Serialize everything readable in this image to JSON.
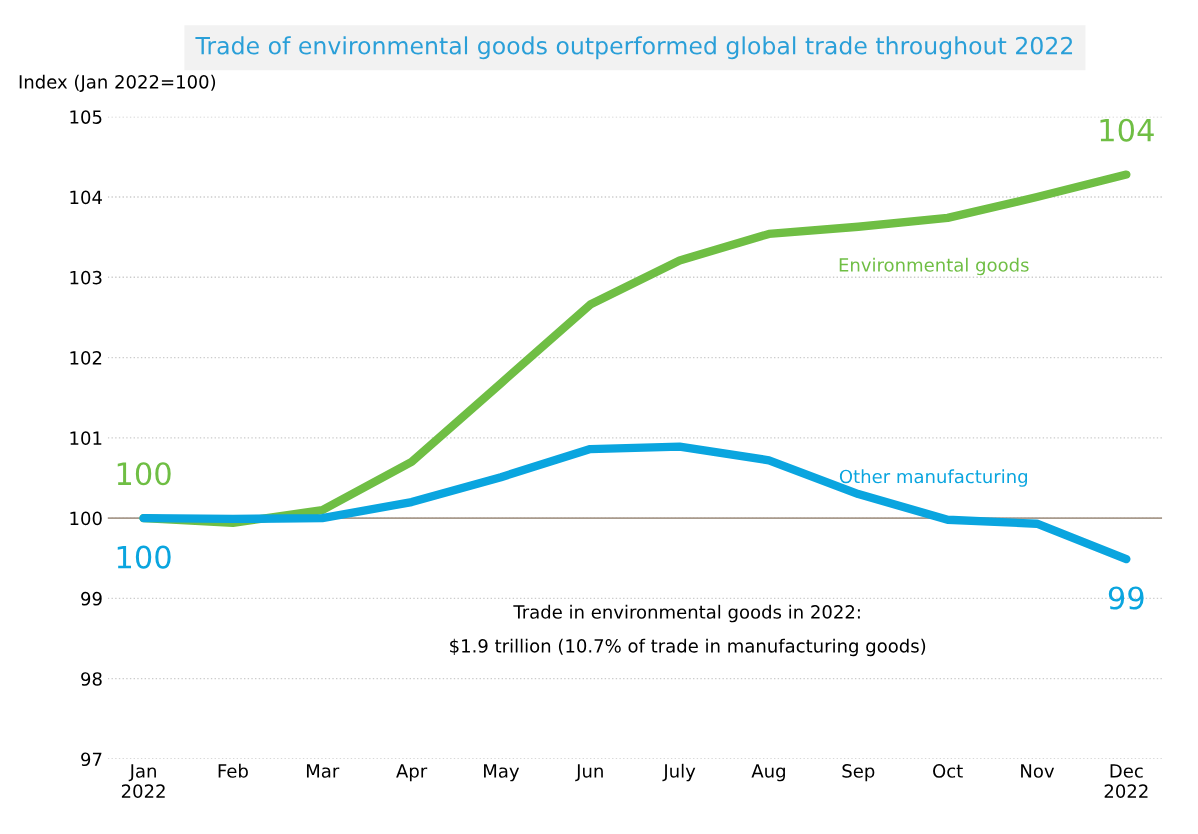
{
  "chart_data": {
    "type": "line",
    "title": "Trade of environmental goods outperformed global trade throughout 2022",
    "ylabel": "Index (Jan 2022=100)",
    "categories": [
      "Jan\n2022",
      "Feb",
      "Mar",
      "Apr",
      "May",
      "Jun",
      "July",
      "Aug",
      "Sep",
      "Oct",
      "Nov",
      "Dec\n2022"
    ],
    "series": [
      {
        "name": "Environmental goods",
        "color": "#6fbe44",
        "values": [
          100.0,
          99.94,
          100.1,
          100.7,
          101.68,
          102.66,
          103.21,
          103.54,
          103.63,
          103.74,
          104.0,
          104.28
        ]
      },
      {
        "name": "Other manufacturing",
        "color": "#0aa5df",
        "values": [
          100.0,
          99.99,
          100.0,
          100.2,
          100.51,
          100.86,
          100.89,
          100.72,
          100.3,
          99.98,
          99.93,
          99.49
        ]
      }
    ],
    "ylim": [
      97,
      105
    ],
    "yticks": [
      97,
      98,
      99,
      100,
      101,
      102,
      103,
      104,
      105
    ],
    "grid": "y",
    "legend": false,
    "marker": "none",
    "line_style": "solid",
    "ref_lines": [
      {
        "axis": "y",
        "value": 100,
        "color": "#a89a8c"
      }
    ],
    "annotations": [
      {
        "text": "100",
        "x": "Jan\n2022",
        "y": 100.0
      },
      {
        "text": "100",
        "x": "Jan\n2022",
        "y": 100.0
      },
      {
        "text": "104",
        "x": "Dec\n2022",
        "y": 104.28
      },
      {
        "text": "99",
        "x": "Dec\n2022",
        "y": 99.49
      },
      "Trade in environmental goods in 2022:\n$1.9 trillion (10.7% of trade in manufacturing goods)"
    ]
  }
}
